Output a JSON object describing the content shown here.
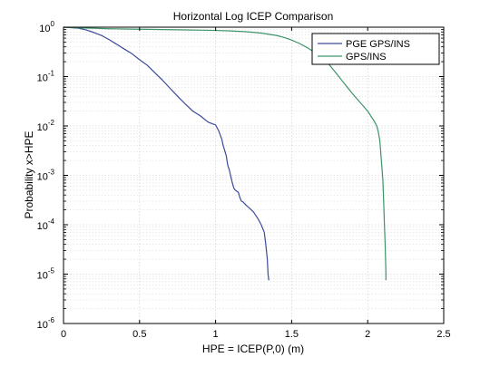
{
  "chart_data": {
    "type": "line",
    "title": "Horizontal Log ICEP Comparison",
    "xlabel": "HPE = ICEP(P,0) (m)",
    "ylabel": "Probability x>HPE",
    "xlim": [
      0,
      2.5
    ],
    "ylim": [
      1e-06,
      1
    ],
    "yscale": "log",
    "grid": true,
    "x_ticks": [
      "0",
      "0.5",
      "1",
      "1.5",
      "2",
      "2.5"
    ],
    "y_ticks": [
      {
        "base": "10",
        "exp": "0"
      },
      {
        "base": "10",
        "exp": "-1"
      },
      {
        "base": "10",
        "exp": "-2"
      },
      {
        "base": "10",
        "exp": "-3"
      },
      {
        "base": "10",
        "exp": "-4"
      },
      {
        "base": "10",
        "exp": "-5"
      },
      {
        "base": "10",
        "exp": "-6"
      }
    ],
    "legend_position": "top-right",
    "series": [
      {
        "name": "PGE GPS/INS",
        "color": "#3b4a9a",
        "x": [
          0,
          0.05,
          0.1,
          0.15,
          0.2,
          0.25,
          0.3,
          0.35,
          0.4,
          0.45,
          0.5,
          0.55,
          0.6,
          0.65,
          0.7,
          0.75,
          0.8,
          0.85,
          0.9,
          0.95,
          0.98,
          1.0,
          1.02,
          1.04,
          1.05,
          1.07,
          1.08,
          1.09,
          1.1,
          1.11,
          1.12,
          1.13,
          1.15,
          1.16,
          1.17,
          1.18,
          1.2,
          1.22,
          1.25,
          1.28,
          1.3,
          1.32,
          1.33,
          1.34,
          1.345,
          1.35
        ],
        "y": [
          1,
          0.98,
          0.95,
          0.88,
          0.78,
          0.68,
          0.56,
          0.45,
          0.36,
          0.29,
          0.22,
          0.17,
          0.12,
          0.085,
          0.058,
          0.04,
          0.028,
          0.02,
          0.016,
          0.012,
          0.011,
          0.0105,
          0.008,
          0.0055,
          0.004,
          0.0025,
          0.0016,
          0.0013,
          0.00095,
          0.0007,
          0.00055,
          0.0005,
          0.00045,
          0.00035,
          0.0003,
          0.00029,
          0.00025,
          0.00022,
          0.00018,
          0.00013,
          0.0001,
          7e-05,
          4e-05,
          2e-05,
          1e-05,
          7.5e-06
        ]
      },
      {
        "name": "GPS/INS",
        "color": "#3d9468",
        "x": [
          0,
          0.1,
          0.2,
          0.3,
          0.4,
          0.5,
          0.6,
          0.7,
          0.8,
          0.9,
          1.0,
          1.1,
          1.2,
          1.3,
          1.4,
          1.45,
          1.5,
          1.55,
          1.6,
          1.65,
          1.7,
          1.75,
          1.8,
          1.85,
          1.9,
          1.95,
          2.0,
          2.02,
          2.04,
          2.06,
          2.07,
          2.08,
          2.09,
          2.1,
          2.105,
          2.11,
          2.115,
          2.12,
          2.12
        ],
        "y": [
          1,
          0.97,
          0.95,
          0.93,
          0.92,
          0.91,
          0.9,
          0.89,
          0.88,
          0.87,
          0.86,
          0.84,
          0.81,
          0.76,
          0.68,
          0.62,
          0.55,
          0.47,
          0.39,
          0.31,
          0.24,
          0.17,
          0.11,
          0.07,
          0.045,
          0.03,
          0.02,
          0.016,
          0.013,
          0.01,
          0.0075,
          0.005,
          0.002,
          0.0008,
          0.0003,
          0.0001,
          4e-05,
          1e-05,
          7.5e-06
        ]
      }
    ]
  }
}
